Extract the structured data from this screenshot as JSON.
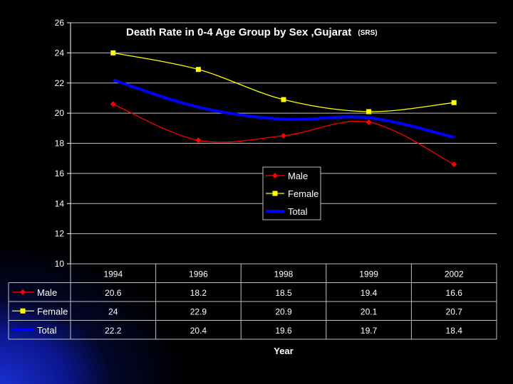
{
  "chart_data": {
    "type": "line",
    "title": "Death Rate in 0-4 Age Group by Sex ,Gujarat",
    "title_suffix": "(SRS)",
    "xlabel": "Year",
    "ylabel": "",
    "categories": [
      "1994",
      "1996",
      "1998",
      "1999",
      "2002"
    ],
    "ylim": [
      10,
      26
    ],
    "yticks": [
      10,
      12,
      14,
      16,
      18,
      20,
      22,
      24,
      26
    ],
    "grid": true,
    "legend_position": "center-right",
    "series": [
      {
        "name": "Male",
        "values": [
          20.6,
          18.2,
          18.5,
          19.4,
          16.6
        ],
        "color": "#ff0000",
        "marker": "diamond"
      },
      {
        "name": "Female",
        "values": [
          24,
          22.9,
          20.9,
          20.1,
          20.7
        ],
        "color": "#ffff00",
        "marker": "square"
      },
      {
        "name": "Total",
        "values": [
          22.2,
          20.4,
          19.6,
          19.7,
          18.4
        ],
        "color": "#0000ff",
        "marker": "none"
      }
    ],
    "table_values": {
      "Male": [
        "20.6",
        "18.2",
        "18.5",
        "19.4",
        "16.6"
      ],
      "Female": [
        "24",
        "22.9",
        "20.9",
        "20.1",
        "20.7"
      ],
      "Total": [
        "22.2",
        "20.4",
        "19.6",
        "19.7",
        "18.4"
      ]
    }
  }
}
